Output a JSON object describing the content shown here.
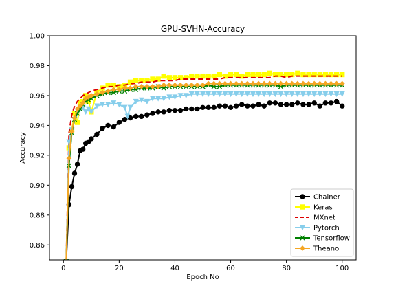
{
  "chart_data": {
    "type": "line",
    "title": "GPU-SVHN-Accuracy",
    "xlabel": "Epoch No",
    "ylabel": "Accuracy",
    "xlim": [
      -5,
      105
    ],
    "ylim": [
      0.85,
      1.0
    ],
    "xticks": [
      0,
      20,
      40,
      60,
      80,
      100
    ],
    "yticks": [
      0.86,
      0.88,
      0.9,
      0.92,
      0.94,
      0.96,
      0.98,
      1.0
    ],
    "ytick_labels": [
      "0.86",
      "0.88",
      "0.90",
      "0.92",
      "0.94",
      "0.96",
      "0.98",
      "1.00"
    ],
    "legend_position": "lower right",
    "grid": false,
    "series": [
      {
        "name": "Chainer",
        "color": "#000000",
        "linestyle": "solid",
        "marker": "circle",
        "x": [
          1,
          2,
          3,
          4,
          5,
          6,
          7,
          8,
          9,
          10,
          12,
          14,
          16,
          18,
          20,
          22,
          24,
          26,
          28,
          30,
          32,
          34,
          36,
          38,
          40,
          42,
          44,
          46,
          48,
          50,
          52,
          54,
          56,
          58,
          60,
          62,
          64,
          66,
          68,
          70,
          72,
          74,
          76,
          78,
          80,
          82,
          84,
          86,
          88,
          90,
          92,
          94,
          96,
          98,
          100
        ],
        "y": [
          0.849,
          0.887,
          0.899,
          0.908,
          0.914,
          0.923,
          0.924,
          0.928,
          0.929,
          0.931,
          0.934,
          0.938,
          0.94,
          0.939,
          0.942,
          0.944,
          0.945,
          0.946,
          0.946,
          0.947,
          0.948,
          0.949,
          0.949,
          0.95,
          0.95,
          0.95,
          0.951,
          0.951,
          0.951,
          0.952,
          0.952,
          0.952,
          0.953,
          0.953,
          0.952,
          0.953,
          0.954,
          0.953,
          0.953,
          0.954,
          0.953,
          0.955,
          0.955,
          0.954,
          0.954,
          0.954,
          0.955,
          0.954,
          0.954,
          0.955,
          0.953,
          0.955,
          0.955,
          0.956,
          0.953
        ]
      },
      {
        "name": "Keras",
        "color": "#ffff00",
        "linestyle": "solid",
        "marker": "square",
        "x": [
          1,
          2,
          3,
          4,
          5,
          6,
          7,
          8,
          9,
          10,
          12,
          14,
          16,
          18,
          20,
          22,
          24,
          26,
          28,
          30,
          32,
          34,
          36,
          38,
          40,
          42,
          44,
          46,
          48,
          50,
          52,
          54,
          56,
          58,
          60,
          62,
          64,
          66,
          68,
          70,
          72,
          74,
          76,
          78,
          80,
          82,
          84,
          86,
          88,
          90,
          92,
          94,
          96,
          98,
          100
        ],
        "y": [
          0.849,
          0.925,
          0.937,
          0.948,
          0.942,
          0.955,
          0.956,
          0.96,
          0.956,
          0.949,
          0.962,
          0.965,
          0.967,
          0.967,
          0.966,
          0.967,
          0.969,
          0.97,
          0.97,
          0.97,
          0.971,
          0.971,
          0.973,
          0.972,
          0.972,
          0.972,
          0.972,
          0.973,
          0.973,
          0.973,
          0.973,
          0.973,
          0.974,
          0.973,
          0.974,
          0.974,
          0.973,
          0.974,
          0.974,
          0.974,
          0.974,
          0.975,
          0.974,
          0.974,
          0.974,
          0.974,
          0.975,
          0.974,
          0.974,
          0.974,
          0.974,
          0.974,
          0.974,
          0.974,
          0.974
        ]
      },
      {
        "name": "MXnet",
        "color": "#dd0000",
        "linestyle": "dashed",
        "marker": "none",
        "x": [
          1,
          2,
          3,
          4,
          5,
          6,
          7,
          8,
          9,
          10,
          12,
          14,
          16,
          18,
          20,
          22,
          24,
          26,
          28,
          30,
          32,
          34,
          36,
          38,
          40,
          42,
          44,
          46,
          48,
          50,
          52,
          54,
          56,
          58,
          60,
          62,
          64,
          66,
          68,
          70,
          72,
          74,
          76,
          78,
          80,
          82,
          84,
          86,
          88,
          90,
          92,
          94,
          96,
          98,
          100
        ],
        "y": [
          0.849,
          0.935,
          0.947,
          0.953,
          0.956,
          0.958,
          0.96,
          0.961,
          0.962,
          0.963,
          0.964,
          0.965,
          0.966,
          0.966,
          0.967,
          0.967,
          0.968,
          0.968,
          0.969,
          0.969,
          0.969,
          0.97,
          0.97,
          0.97,
          0.97,
          0.971,
          0.971,
          0.971,
          0.971,
          0.971,
          0.971,
          0.971,
          0.971,
          0.972,
          0.972,
          0.972,
          0.972,
          0.972,
          0.972,
          0.972,
          0.972,
          0.972,
          0.973,
          0.973,
          0.972,
          0.973,
          0.973,
          0.973,
          0.973,
          0.973,
          0.973,
          0.973,
          0.973,
          0.973,
          0.973
        ]
      },
      {
        "name": "Pytorch",
        "color": "#87ceeb",
        "linestyle": "solid",
        "marker": "triangle-down",
        "x": [
          1,
          2,
          3,
          4,
          5,
          6,
          7,
          8,
          9,
          10,
          12,
          14,
          16,
          18,
          20,
          22,
          23,
          24,
          26,
          28,
          30,
          32,
          34,
          36,
          38,
          40,
          42,
          44,
          46,
          48,
          50,
          52,
          54,
          56,
          58,
          60,
          62,
          64,
          66,
          68,
          70,
          72,
          74,
          76,
          78,
          80,
          82,
          84,
          86,
          88,
          90,
          92,
          94,
          96,
          98,
          100
        ],
        "y": [
          0.849,
          0.929,
          0.937,
          0.944,
          0.948,
          0.951,
          0.952,
          0.949,
          0.951,
          0.949,
          0.953,
          0.954,
          0.954,
          0.955,
          0.954,
          0.952,
          0.946,
          0.952,
          0.956,
          0.957,
          0.956,
          0.958,
          0.958,
          0.958,
          0.959,
          0.959,
          0.96,
          0.96,
          0.961,
          0.961,
          0.961,
          0.961,
          0.961,
          0.961,
          0.961,
          0.961,
          0.961,
          0.961,
          0.961,
          0.961,
          0.961,
          0.961,
          0.961,
          0.961,
          0.961,
          0.961,
          0.961,
          0.961,
          0.961,
          0.961,
          0.961,
          0.961,
          0.961,
          0.961,
          0.961,
          0.961
        ]
      },
      {
        "name": "Tensorflow",
        "color": "#008000",
        "linestyle": "solid",
        "marker": "x",
        "x": [
          1,
          2,
          3,
          4,
          5,
          6,
          7,
          8,
          9,
          10,
          12,
          14,
          16,
          18,
          20,
          22,
          24,
          26,
          28,
          30,
          32,
          34,
          36,
          38,
          40,
          42,
          44,
          46,
          48,
          50,
          52,
          54,
          56,
          58,
          60,
          62,
          64,
          66,
          68,
          70,
          72,
          74,
          76,
          78,
          80,
          82,
          84,
          86,
          88,
          90,
          92,
          94,
          96,
          98,
          100
        ],
        "y": [
          0.849,
          0.913,
          0.935,
          0.944,
          0.948,
          0.951,
          0.954,
          0.956,
          0.957,
          0.958,
          0.96,
          0.961,
          0.962,
          0.962,
          0.963,
          0.963,
          0.964,
          0.964,
          0.965,
          0.965,
          0.965,
          0.966,
          0.965,
          0.966,
          0.966,
          0.966,
          0.966,
          0.966,
          0.966,
          0.966,
          0.967,
          0.966,
          0.966,
          0.967,
          0.967,
          0.967,
          0.967,
          0.967,
          0.967,
          0.967,
          0.967,
          0.967,
          0.967,
          0.966,
          0.967,
          0.967,
          0.967,
          0.967,
          0.967,
          0.967,
          0.967,
          0.967,
          0.967,
          0.967,
          0.967
        ]
      },
      {
        "name": "Theano",
        "color": "#f5a623",
        "linestyle": "solid",
        "marker": "diamond",
        "x": [
          1,
          2,
          3,
          4,
          5,
          6,
          7,
          8,
          9,
          10,
          12,
          14,
          16,
          18,
          20,
          22,
          24,
          26,
          28,
          30,
          32,
          34,
          36,
          38,
          40,
          42,
          44,
          46,
          48,
          50,
          52,
          54,
          56,
          58,
          60,
          62,
          64,
          66,
          68,
          70,
          72,
          74,
          76,
          78,
          80,
          82,
          84,
          86,
          88,
          90,
          92,
          94,
          96,
          98,
          100
        ],
        "y": [
          0.849,
          0.918,
          0.936,
          0.945,
          0.951,
          0.953,
          0.955,
          0.958,
          0.959,
          0.96,
          0.961,
          0.962,
          0.963,
          0.964,
          0.964,
          0.965,
          0.965,
          0.966,
          0.966,
          0.966,
          0.966,
          0.966,
          0.967,
          0.967,
          0.967,
          0.967,
          0.967,
          0.967,
          0.967,
          0.967,
          0.968,
          0.968,
          0.968,
          0.968,
          0.968,
          0.968,
          0.968,
          0.968,
          0.968,
          0.968,
          0.968,
          0.968,
          0.968,
          0.968,
          0.968,
          0.968,
          0.968,
          0.968,
          0.968,
          0.968,
          0.968,
          0.968,
          0.968,
          0.968,
          0.968
        ]
      }
    ]
  }
}
